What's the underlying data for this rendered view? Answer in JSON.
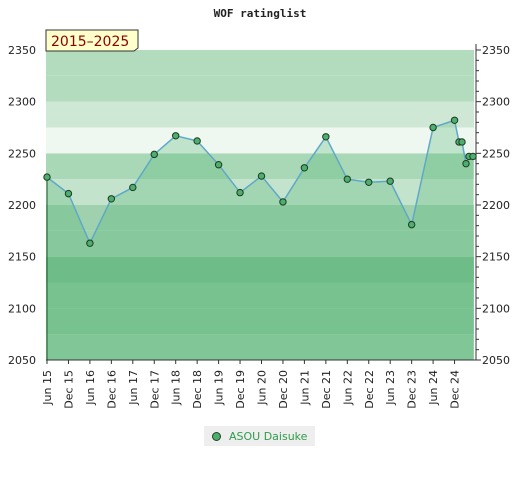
{
  "title": "WOF ratinglist",
  "period": "2015–2025",
  "chart_data": {
    "type": "line",
    "title": "WOF ratinglist",
    "ylim": [
      2050,
      2350
    ],
    "y_ticks": [
      2050,
      2100,
      2150,
      2200,
      2250,
      2300,
      2350
    ],
    "x_ticks": [
      "Jun 15",
      "Dec 15",
      "Jun 16",
      "Dec 16",
      "Jun 17",
      "Dec 17",
      "Jun 18",
      "Dec 18",
      "Jun 19",
      "Dec 19",
      "Jun 20",
      "Dec 20",
      "Jun 21",
      "Dec 21",
      "Jun 22",
      "Dec 22",
      "Jun 23",
      "Dec 23",
      "Jun 24",
      "Dec 24"
    ],
    "legend": "bottom",
    "series": [
      {
        "name": "ASOU Daisuke",
        "points": [
          {
            "x": "Jun 15",
            "y": 2227
          },
          {
            "x": "Dec 15",
            "y": 2211
          },
          {
            "x": "Jun 16",
            "y": 2163
          },
          {
            "x": "Dec 16",
            "y": 2206
          },
          {
            "x": "Jun 17",
            "y": 2217
          },
          {
            "x": "Dec 17",
            "y": 2249
          },
          {
            "x": "Jun 18",
            "y": 2267
          },
          {
            "x": "Dec 18",
            "y": 2262
          },
          {
            "x": "Jun 19",
            "y": 2239
          },
          {
            "x": "Dec 19",
            "y": 2212
          },
          {
            "x": "Jun 20",
            "y": 2228
          },
          {
            "x": "Dec 20",
            "y": 2203
          },
          {
            "x": "Jun 21",
            "y": 2236
          },
          {
            "x": "Dec 21",
            "y": 2266
          },
          {
            "x": "Jun 22",
            "y": 2225
          },
          {
            "x": "Dec 22",
            "y": 2222
          },
          {
            "x": "Jun 23",
            "y": 2223
          },
          {
            "x": "Dec 23",
            "y": 2181
          },
          {
            "x": "Jun 24",
            "y": 2275
          },
          {
            "x": "Dec 24",
            "y": 2282
          },
          {
            "x": "Dec 24",
            "y": 2261
          },
          {
            "x": "Dec 24",
            "y": 2261
          },
          {
            "x": "Dec 24",
            "y": 2240
          },
          {
            "x": "Dec 24",
            "y": 2247
          },
          {
            "x": "Dec 24",
            "y": 2247
          }
        ]
      }
    ],
    "colors": {
      "line": "#5fa8c8",
      "area": "#4caf6f",
      "marker": "#4caf6f",
      "legend_text": "#2e9c4a"
    }
  }
}
